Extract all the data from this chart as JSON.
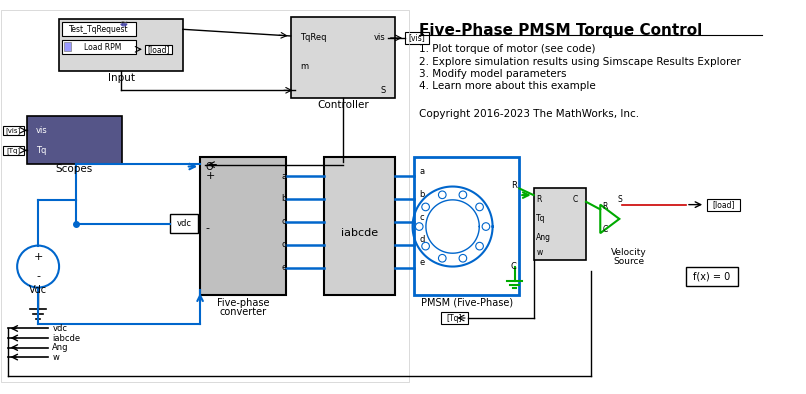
{
  "title": "Five-Phase PMSM Torque Control",
  "bg_color": "#ffffff",
  "diagram_bg": "#f5f5f5",
  "items_text": [
    "1. Plot torque of motor (see code)",
    "2. Explore simulation results using Simscape Results Explorer",
    "3. Modify model parameters",
    "4. Learn more about this example"
  ],
  "copyright": "Copyright 2016-2023 The MathWorks, Inc.",
  "blue_line_color": "#0066cc",
  "green_color": "#00aa00",
  "dark_red_color": "#cc0000",
  "block_fill": "#e8e8e8",
  "block_edge": "#000000",
  "text_color": "#000000"
}
